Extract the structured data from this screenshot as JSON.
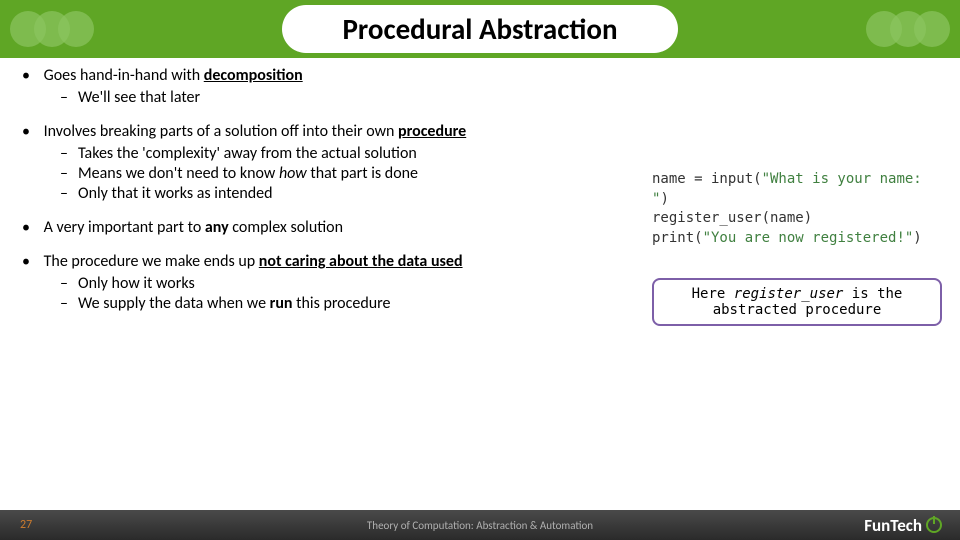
{
  "title": "Procedural Abstraction",
  "bullets": {
    "b1": {
      "pre": "Goes hand-in-hand with ",
      "u": "decomposition",
      "sub1": "We'll see that later"
    },
    "b2": {
      "pre": "Involves breaking parts of a solution off into their own ",
      "u": "procedure",
      "sub1": "Takes the 'complexity' away from the actual solution",
      "sub2_pre": "Means we don't need to know ",
      "sub2_i": "how",
      "sub2_post": " that part is done",
      "sub3": "Only that it works as intended"
    },
    "b3": {
      "pre": "A very important part to ",
      "b": "any",
      "post": " complex solution"
    },
    "b4": {
      "pre": "The procedure we make ends up ",
      "u": "not caring about the data used",
      "sub1": "Only how it works",
      "sub2_pre": "We supply the data when we ",
      "sub2_b": "run",
      "sub2_post": " this procedure"
    }
  },
  "code": {
    "l1a": "name = input(",
    "l1b": "\"What is your name: \"",
    "l1c": ")",
    "l2": "register_user(name)",
    "l3a": "print(",
    "l3b": "\"You are now registered!\"",
    "l3c": ")"
  },
  "callout": {
    "pre": "Here ",
    "fn": "register_user",
    "post": " is the abstracted procedure"
  },
  "footer": {
    "page": "27",
    "text": "Theory of Computation: Abstraction & Automation",
    "logo": "FunTech"
  },
  "colors": {
    "header_bg": "#5fa625",
    "callout_border": "#7d5fa8",
    "code_string": "#408040",
    "footer_bg": "#3a3a3a",
    "page_num": "#c97a2e"
  }
}
